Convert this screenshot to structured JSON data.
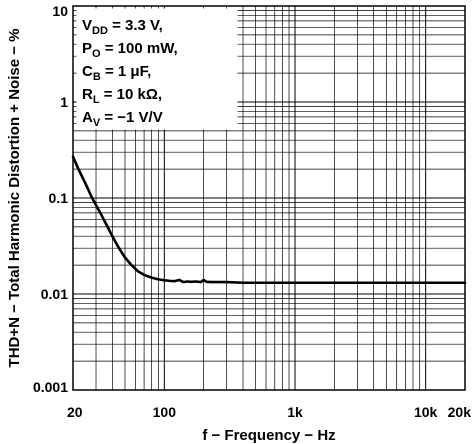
{
  "chart_data": {
    "type": "line",
    "xlabel": "f − Frequency − Hz",
    "ylabel": "THD+N − Total Harmonic Distortion + Noise − %",
    "x_scale": "log",
    "y_scale": "log",
    "xlim": [
      20,
      20000
    ],
    "ylim": [
      0.001,
      10
    ],
    "grid": true,
    "x_tick_labels": [
      {
        "value": 20,
        "label": "20"
      },
      {
        "value": 100,
        "label": "100"
      },
      {
        "value": 1000,
        "label": "1k"
      },
      {
        "value": 10000,
        "label": "10k"
      },
      {
        "value": 20000,
        "label": "20k"
      }
    ],
    "y_tick_labels": [
      {
        "value": 10,
        "label": "10"
      },
      {
        "value": 1,
        "label": "1"
      },
      {
        "value": 0.1,
        "label": "0.1"
      },
      {
        "value": 0.01,
        "label": "0.01"
      },
      {
        "value": 0.001,
        "label": "0.001"
      }
    ],
    "conditions": [
      {
        "main": "V",
        "sub": "DD",
        "rest": " = 3.3 V,"
      },
      {
        "main": "P",
        "sub": "O",
        "rest": " = 100 mW,"
      },
      {
        "main": "C",
        "sub": "B",
        "rest": " = 1 μF,"
      },
      {
        "main": "R",
        "sub": "L",
        "rest": " = 10 kΩ,"
      },
      {
        "main": "A",
        "sub": "V",
        "rest": " = −1 V/V"
      }
    ],
    "series": [
      {
        "x": [
          20,
          22,
          25,
          28,
          32,
          36,
          40,
          45,
          50,
          56,
          63,
          70,
          80,
          90,
          100,
          110,
          120,
          130,
          140,
          150,
          160,
          175,
          190,
          200,
          210,
          230,
          260,
          300,
          400,
          600,
          1000,
          2000,
          5000,
          10000,
          20000
        ],
        "y": [
          0.27,
          0.2,
          0.14,
          0.1,
          0.072,
          0.053,
          0.04,
          0.03,
          0.024,
          0.02,
          0.0172,
          0.0158,
          0.0148,
          0.0142,
          0.0139,
          0.0137,
          0.0136,
          0.014,
          0.0133,
          0.0135,
          0.0134,
          0.0135,
          0.0133,
          0.014,
          0.0134,
          0.0133,
          0.0133,
          0.0133,
          0.0131,
          0.0131,
          0.0131,
          0.0131,
          0.0131,
          0.0131,
          0.0131
        ]
      }
    ]
  }
}
